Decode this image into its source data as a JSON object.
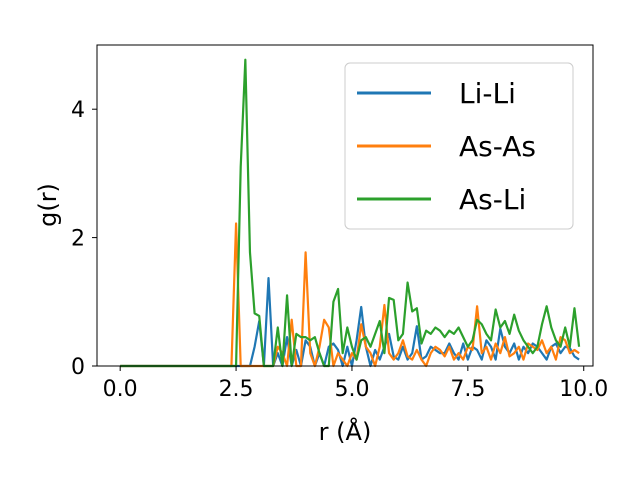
{
  "chart_data": {
    "type": "line",
    "title": "",
    "xlabel": "r (Å)",
    "ylabel": "g(r)",
    "xlim": [
      -0.5,
      10.2
    ],
    "ylim": [
      0,
      5
    ],
    "xticks": [
      0.0,
      2.5,
      5.0,
      7.5,
      10.0
    ],
    "xtick_labels": [
      "0.0",
      "2.5",
      "5.0",
      "7.5",
      "10.0"
    ],
    "yticks": [
      0,
      2,
      4
    ],
    "ytick_labels": [
      "0",
      "2",
      "4"
    ],
    "grid": false,
    "legend_position": "top-right",
    "series": [
      {
        "name": "Li-Li",
        "color": "#1f77b4",
        "x": [
          0.0,
          2.4,
          2.5,
          2.6,
          2.7,
          2.8,
          2.9,
          3.0,
          3.1,
          3.2,
          3.3,
          3.4,
          3.5,
          3.6,
          3.7,
          3.8,
          3.9,
          4.0,
          4.1,
          4.2,
          4.3,
          4.4,
          4.5,
          4.6,
          4.7,
          4.8,
          4.9,
          5.0,
          5.1,
          5.2,
          5.3,
          5.4,
          5.5,
          5.6,
          5.7,
          5.8,
          5.9,
          6.0,
          6.1,
          6.2,
          6.3,
          6.4,
          6.5,
          6.6,
          6.7,
          6.8,
          6.9,
          7.0,
          7.1,
          7.2,
          7.3,
          7.4,
          7.5,
          7.6,
          7.7,
          7.8,
          7.9,
          8.0,
          8.1,
          8.2,
          8.3,
          8.4,
          8.5,
          8.6,
          8.7,
          8.8,
          8.9,
          9.0,
          9.1,
          9.2,
          9.3,
          9.4,
          9.5,
          9.6,
          9.7,
          9.8,
          9.9
        ],
        "y": [
          0,
          0,
          0,
          0,
          0,
          0,
          0.3,
          0.7,
          0,
          1.37,
          0,
          0.2,
          0,
          0.45,
          0,
          0.25,
          0,
          0.4,
          0.3,
          0,
          0.2,
          0,
          0.3,
          0.35,
          0.25,
          0,
          0.3,
          0,
          0.4,
          0.92,
          0.3,
          0,
          0.25,
          0.1,
          0.3,
          0.5,
          0.15,
          0.1,
          0.3,
          0.1,
          0.2,
          0.62,
          0.1,
          0.15,
          0.3,
          0.25,
          0.2,
          0.2,
          0.35,
          0.2,
          0.1,
          0.35,
          0.1,
          0.3,
          0.25,
          0.1,
          0.4,
          0.3,
          0.1,
          0.58,
          0.3,
          0.2,
          0.35,
          0.1,
          0.3,
          0.2,
          0.35,
          0.3,
          0.2,
          0.1,
          0.3,
          0.35,
          0.2,
          0.3,
          0.28,
          0.15,
          0.1
        ]
      },
      {
        "name": "As-As",
        "color": "#ff7f0e",
        "x": [
          0.0,
          2.4,
          2.5,
          2.6,
          2.7,
          2.8,
          2.9,
          3.0,
          3.1,
          3.2,
          3.3,
          3.4,
          3.5,
          3.6,
          3.7,
          3.8,
          3.9,
          4.0,
          4.1,
          4.2,
          4.3,
          4.4,
          4.5,
          4.6,
          4.7,
          4.8,
          4.9,
          5.0,
          5.1,
          5.2,
          5.3,
          5.4,
          5.5,
          5.6,
          5.7,
          5.8,
          5.9,
          6.0,
          6.1,
          6.2,
          6.3,
          6.4,
          6.5,
          6.6,
          6.7,
          6.8,
          6.9,
          7.0,
          7.1,
          7.2,
          7.3,
          7.4,
          7.5,
          7.6,
          7.7,
          7.8,
          7.9,
          8.0,
          8.1,
          8.2,
          8.3,
          8.4,
          8.5,
          8.6,
          8.7,
          8.8,
          8.9,
          9.0,
          9.1,
          9.2,
          9.3,
          9.4,
          9.5,
          9.6,
          9.7,
          9.8,
          9.9
        ],
        "y": [
          0,
          0,
          2.22,
          0,
          0,
          0,
          0,
          0,
          0,
          0,
          0,
          0.3,
          0.2,
          0,
          0.72,
          0,
          0,
          1.77,
          0.2,
          0,
          0.3,
          0.72,
          0.6,
          0,
          0.2,
          0.1,
          0,
          0.2,
          0.1,
          0.65,
          0.3,
          0.2,
          0,
          0.3,
          0.95,
          0.2,
          0.1,
          0.2,
          0.4,
          0.15,
          0.1,
          0.25,
          0.1,
          0,
          0.2,
          0.3,
          0.25,
          0.15,
          0.3,
          0.1,
          0.2,
          0.1,
          0.3,
          0.25,
          0.93,
          0.2,
          0.3,
          0.1,
          0.35,
          0.2,
          0.45,
          0.15,
          0.2,
          0.3,
          0.1,
          0.35,
          0.3,
          0.25,
          0.4,
          0.2,
          0.3,
          0.1,
          0.45,
          0.4,
          0.2,
          0.25,
          0.2
        ]
      },
      {
        "name": "As-Li",
        "color": "#2ca02c",
        "x": [
          0.0,
          2.4,
          2.5,
          2.6,
          2.7,
          2.8,
          2.9,
          3.0,
          3.1,
          3.2,
          3.3,
          3.4,
          3.5,
          3.6,
          3.7,
          3.8,
          3.9,
          4.0,
          4.1,
          4.2,
          4.3,
          4.4,
          4.5,
          4.6,
          4.7,
          4.8,
          4.9,
          5.0,
          5.1,
          5.2,
          5.3,
          5.4,
          5.5,
          5.6,
          5.7,
          5.8,
          5.9,
          6.0,
          6.1,
          6.2,
          6.3,
          6.4,
          6.5,
          6.6,
          6.7,
          6.8,
          6.9,
          7.0,
          7.1,
          7.2,
          7.3,
          7.4,
          7.5,
          7.6,
          7.7,
          7.8,
          7.9,
          8.0,
          8.1,
          8.2,
          8.3,
          8.4,
          8.5,
          8.6,
          8.7,
          8.8,
          8.9,
          9.0,
          9.1,
          9.2,
          9.3,
          9.4,
          9.5,
          9.6,
          9.7,
          9.8,
          9.9
        ],
        "y": [
          0,
          0,
          0,
          3.1,
          4.77,
          1.77,
          0.82,
          0.78,
          0,
          0,
          0,
          0.6,
          0,
          1.1,
          0,
          0.5,
          0.45,
          0.45,
          0.4,
          0.45,
          0.2,
          0,
          0,
          1.0,
          1.2,
          0.2,
          0.6,
          0.3,
          0.1,
          0.4,
          0.45,
          0.3,
          0.5,
          0.7,
          0.2,
          1.06,
          1.03,
          0.4,
          0.5,
          1.3,
          0.85,
          0.9,
          0.35,
          0.55,
          0.5,
          0.6,
          0.55,
          0.45,
          0.55,
          0.5,
          0.6,
          0.45,
          0.3,
          0.4,
          0.72,
          0.65,
          0.5,
          0.4,
          0.88,
          0.6,
          0.7,
          0.5,
          0.8,
          0.55,
          0.4,
          0.3,
          0.2,
          0.3,
          0.65,
          0.93,
          0.6,
          0.4,
          0.3,
          0.6,
          0.3,
          0.9,
          0.3
        ]
      }
    ]
  }
}
